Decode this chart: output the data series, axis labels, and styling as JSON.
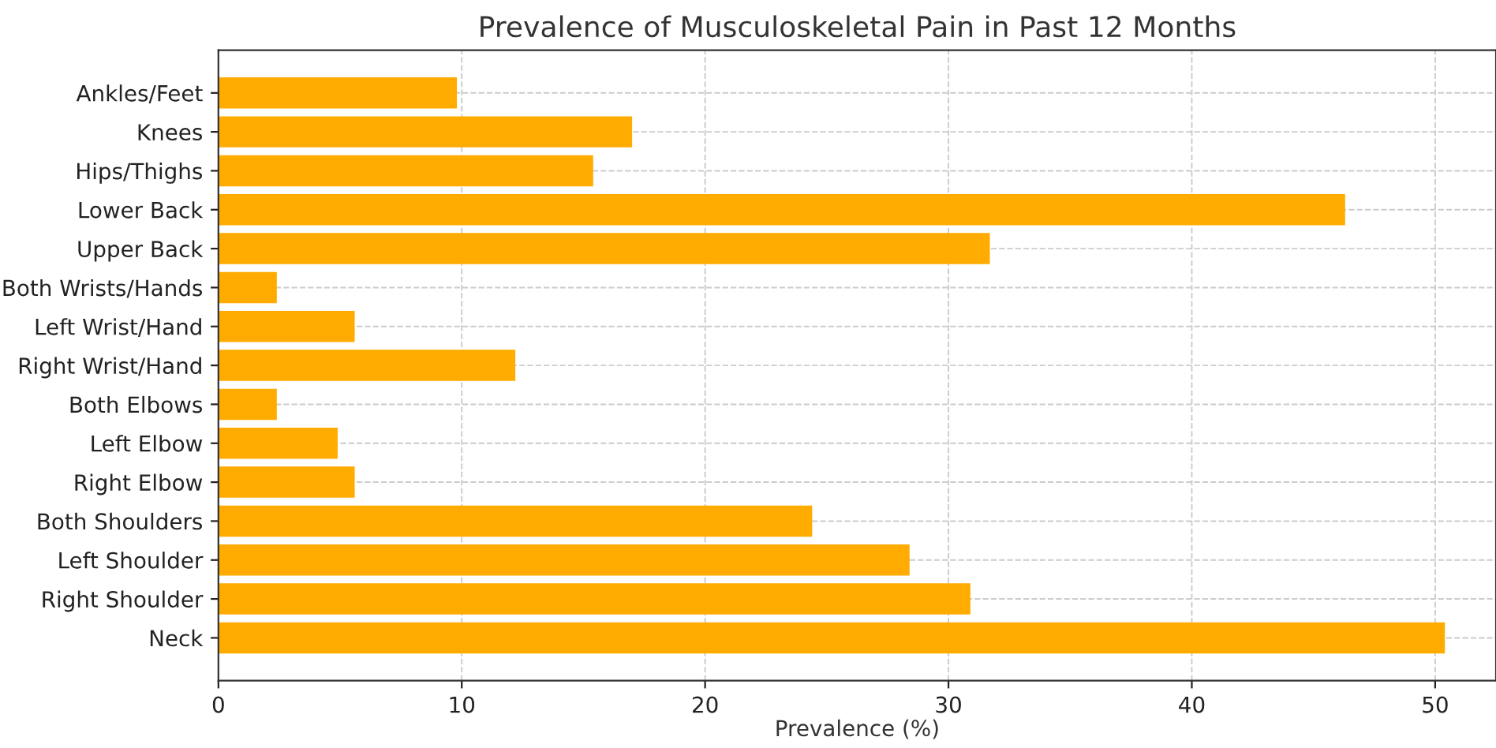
{
  "chart_data": {
    "type": "bar",
    "orientation": "horizontal",
    "title": "Prevalence of Musculoskeletal Pain in Past 12 Months",
    "xlabel": "Prevalence (%)",
    "categories": [
      "Ankles/Feet",
      "Knees",
      "Hips/Thighs",
      "Lower Back",
      "Upper Back",
      "Both Wrists/Hands",
      "Left Wrist/Hand",
      "Right Wrist/Hand",
      "Both Elbows",
      "Left Elbow",
      "Right Elbow",
      "Both Shoulders",
      "Left Shoulder",
      "Right Shoulder",
      "Neck"
    ],
    "values": [
      9.8,
      17.0,
      15.4,
      46.3,
      31.7,
      2.4,
      5.6,
      12.2,
      2.4,
      4.9,
      5.6,
      24.4,
      28.4,
      30.9,
      50.4
    ],
    "color": "#ffab00",
    "xlim": [
      0,
      52.5
    ],
    "xticks": [
      0,
      10,
      20,
      30,
      40,
      50
    ],
    "grid": true,
    "legend": false
  }
}
